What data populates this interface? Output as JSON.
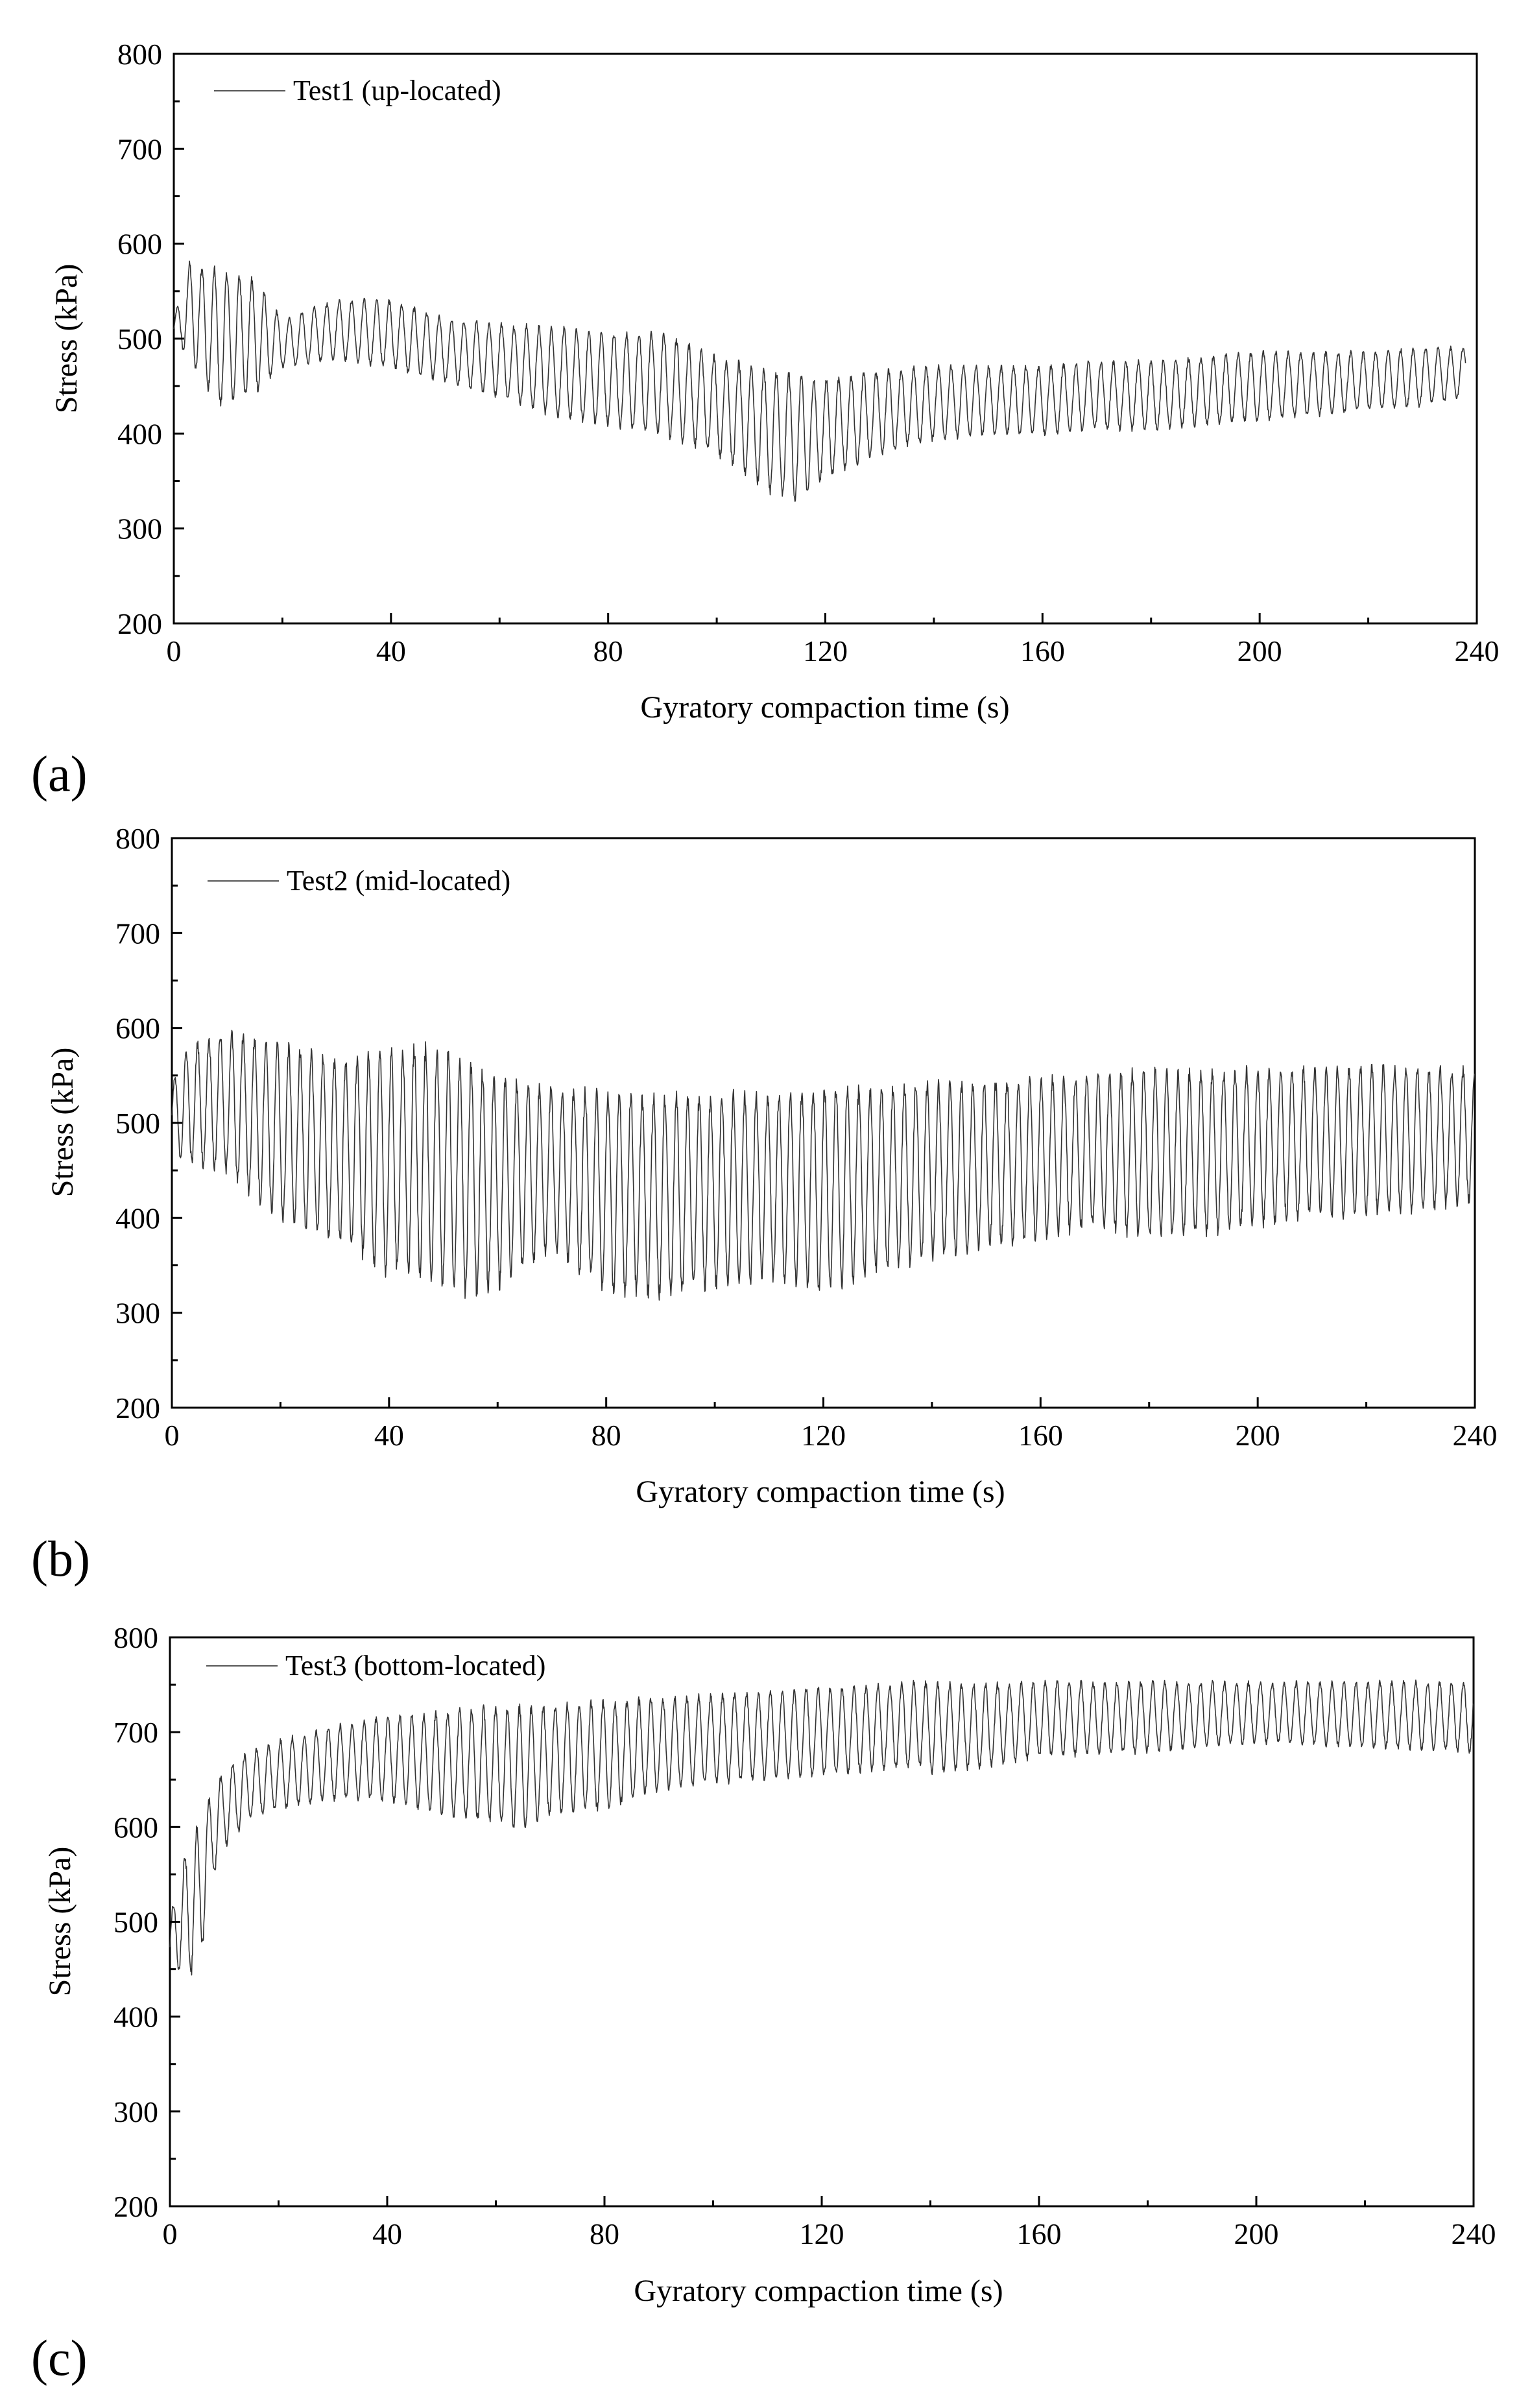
{
  "chart_data": [
    {
      "type": "line",
      "panel_label": "(a)",
      "xlabel": "Gyratory compaction time (s)",
      "ylabel": "Stress (kPa)",
      "xlim": [
        0,
        240
      ],
      "ylim": [
        200,
        800
      ],
      "x_ticks": [
        "0",
        "40",
        "80",
        "120",
        "160",
        "200",
        "240"
      ],
      "y_ticks": [
        "200",
        "300",
        "400",
        "500",
        "600",
        "700",
        "800"
      ],
      "grid": false,
      "legend_position": "top-left",
      "series": [
        {
          "name": "Test1 (up-located)",
          "period_s": 2.3,
          "envelope": {
            "t": [
              0,
              3,
              8,
              15,
              20,
              30,
              40,
              50,
              60,
              70,
              80,
              90,
              100,
              110,
              115,
              120,
              130,
              140,
              150,
              160,
              170,
              180,
              190,
              200,
              210,
              220,
              230,
              238
            ],
            "high": [
              520,
              580,
              570,
              560,
              520,
              540,
              540,
              520,
              515,
              510,
              505,
              505,
              480,
              465,
              460,
              455,
              465,
              470,
              470,
              470,
              475,
              475,
              480,
              485,
              485,
              485,
              490,
              490
            ],
            "low": [
              500,
              480,
              430,
              445,
              470,
              480,
              470,
              455,
              440,
              420,
              410,
              400,
              380,
              340,
              330,
              355,
              380,
              395,
              400,
              400,
              405,
              405,
              410,
              415,
              420,
              425,
              430,
              440
            ]
          }
        }
      ]
    },
    {
      "type": "line",
      "panel_label": "(b)",
      "xlabel": "Gyratory compaction time (s)",
      "ylabel": "Stress (kPa)",
      "xlim": [
        0,
        240
      ],
      "ylim": [
        200,
        800
      ],
      "x_ticks": [
        "0",
        "40",
        "80",
        "120",
        "160",
        "200",
        "240"
      ],
      "y_ticks": [
        "200",
        "300",
        "400",
        "500",
        "600",
        "700",
        "800"
      ],
      "grid": false,
      "legend_position": "top-left",
      "series": [
        {
          "name": "Test2 (mid-located)",
          "period_s": 2.1,
          "envelope": {
            "t": [
              0,
              3,
              10,
              20,
              30,
              40,
              45,
              50,
              55,
              60,
              70,
              80,
              90,
              100,
              110,
              120,
              130,
              140,
              150,
              160,
              170,
              180,
              190,
              200,
              210,
              220,
              230,
              240
            ],
            "high": [
              540,
              580,
              595,
              580,
              565,
              570,
              578,
              575,
              560,
              545,
              535,
              530,
              525,
              525,
              530,
              535,
              535,
              540,
              540,
              545,
              548,
              555,
              550,
              555,
              555,
              558,
              555,
              555
            ],
            "low": [
              470,
              460,
              450,
              400,
              380,
              345,
              345,
              330,
              320,
              330,
              370,
              325,
              320,
              330,
              340,
              325,
              345,
              360,
              370,
              380,
              395,
              380,
              385,
              395,
              405,
              405,
              410,
              420
            ]
          }
        }
      ]
    },
    {
      "type": "line",
      "panel_label": "(c)",
      "xlabel": "Gyratory compaction time (s)",
      "ylabel": "Stress (kPa)",
      "xlim": [
        0,
        240
      ],
      "ylim": [
        200,
        800
      ],
      "x_ticks": [
        "0",
        "40",
        "80",
        "120",
        "160",
        "200",
        "240"
      ],
      "y_ticks": [
        "200",
        "300",
        "400",
        "500",
        "600",
        "700",
        "800"
      ],
      "grid": false,
      "legend_position": "top-left",
      "series": [
        {
          "name": "Test3 (bottom-located)",
          "period_s": 2.2,
          "envelope": {
            "t": [
              0,
              2,
              5,
              8,
              10,
              15,
              20,
              30,
              40,
              50,
              60,
              65,
              70,
              80,
              90,
              100,
              120,
              138,
              140,
              150,
              160,
              180,
              200,
              220,
              240
            ],
            "high": [
              500,
              560,
              600,
              640,
              660,
              680,
              690,
              705,
              715,
              720,
              725,
              725,
              728,
              730,
              735,
              738,
              745,
              752,
              750,
              750,
              752,
              752,
              752,
              752,
              752
            ],
            "low": [
              450,
              450,
              440,
              550,
              580,
              610,
              620,
              630,
              630,
              615,
              605,
              600,
              615,
              620,
              640,
              648,
              655,
              665,
              658,
              665,
              675,
              680,
              690,
              685,
              680
            ]
          }
        }
      ]
    }
  ]
}
